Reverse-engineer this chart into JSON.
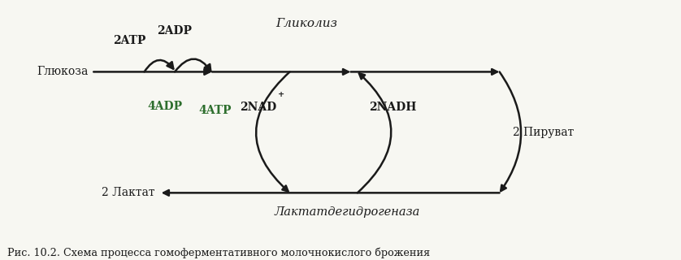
{
  "bg_color": "#f7f7f2",
  "arrow_color": "#1a1a1a",
  "text_color": "#1a1a1a",
  "green_color": "#2d6e2d",
  "caption": "Рис. 10.2. Схема процесса гомоферментативного молочнокислого брожения",
  "label_glicoliz": "Гликолиз",
  "label_laktat": "Лактатдегидрогеназа",
  "label_glukoza": "Глюкоза",
  "label_2atp": "2ATP",
  "label_2adp": "2ADP",
  "label_4adp": "4ADP",
  "label_4atp": "4ATP",
  "label_2nad": "2NAD",
  "label_2nadh": "2NADH",
  "label_2piruvat": "2 Пируват",
  "label_2laktat": "2 Лактат",
  "plus_sign": "+"
}
